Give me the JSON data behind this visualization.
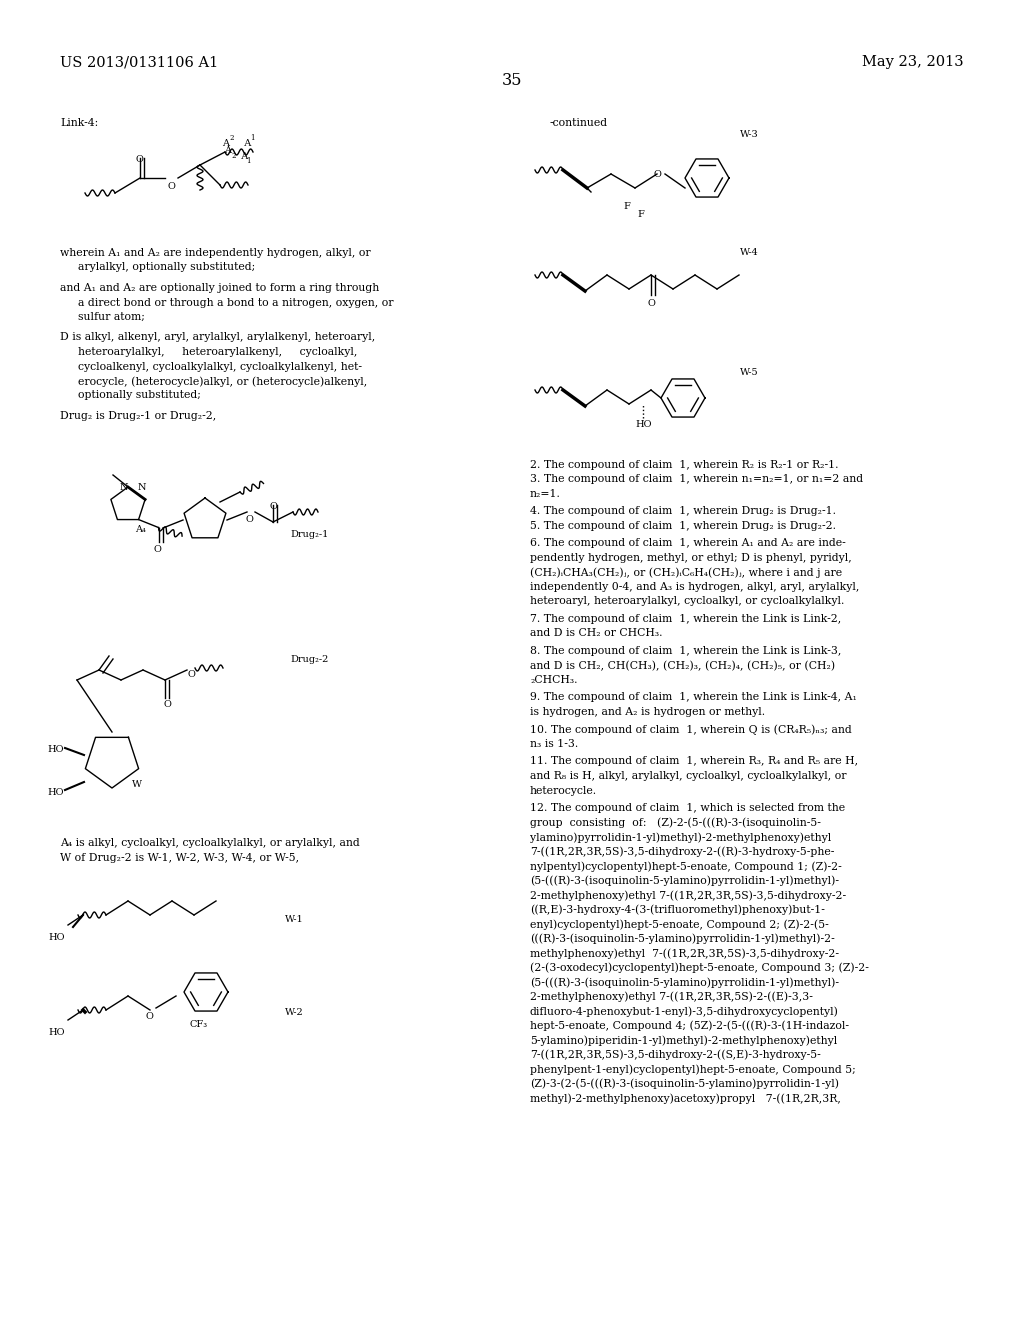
{
  "page_number": "35",
  "header_left": "US 2013/0131106 A1",
  "header_right": "May 23, 2013",
  "background_color": "#ffffff",
  "text_color": "#000000",
  "font_size_header": 10.5,
  "font_size_body": 7.8,
  "font_size_small": 7.0
}
